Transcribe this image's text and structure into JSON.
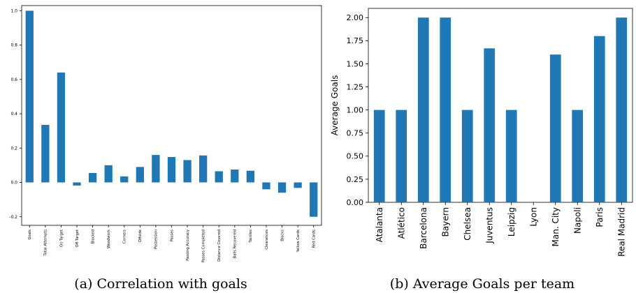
{
  "chart_data": [
    {
      "type": "bar",
      "color": "#1f77b4",
      "categories": [
        "Goals",
        "Total Attempts",
        "On Target",
        "Off Target",
        "Blocked",
        "Woodwork",
        "Corners",
        "Offside",
        "Possession",
        "Passes",
        "Passing Accuracy",
        "Passes Completed",
        "Distance Covered",
        "Balls Recovered",
        "Tackles",
        "Clearances",
        "Blocks",
        "Yellow Cards",
        "Red Cards"
      ],
      "values": [
        1.0,
        0.335,
        0.64,
        -0.018,
        0.055,
        0.1,
        0.035,
        0.09,
        0.16,
        0.148,
        0.13,
        0.157,
        0.065,
        0.075,
        0.068,
        -0.04,
        -0.06,
        -0.032,
        -0.2
      ],
      "ylim": [
        -0.25,
        1.03
      ],
      "yticks": [
        -0.2,
        0.0,
        0.2,
        0.4,
        0.6,
        0.8,
        1.0
      ],
      "ytick_labels": [
        "-0.2",
        "0.0",
        "0.2",
        "0.4",
        "0.6",
        "0.8",
        "1.0"
      ],
      "title": "",
      "xlabel": "",
      "ylabel": "",
      "grid": false,
      "caption": "(a) Correlation with goals"
    },
    {
      "type": "bar",
      "color": "#1f77b4",
      "categories": [
        "Atalanta",
        "Atlético",
        "Barcelona",
        "Bayern",
        "Chelsea",
        "Juventus",
        "Leipzig",
        "Lyon",
        "Man. City",
        "Napoli",
        "Paris",
        "Real Madrid"
      ],
      "values": [
        1.0,
        1.0,
        2.0,
        2.0,
        1.0,
        1.667,
        1.0,
        0.0,
        1.6,
        1.0,
        1.8,
        2.0
      ],
      "ylim": [
        0,
        2.1
      ],
      "yticks": [
        0,
        0.25,
        0.5,
        0.75,
        1.0,
        1.25,
        1.5,
        1.75,
        2.0
      ],
      "ytick_labels": [
        "0.00",
        "0.25",
        "0.50",
        "0.75",
        "1.00",
        "1.25",
        "1.50",
        "1.75",
        "2.00"
      ],
      "title": "",
      "xlabel": "",
      "ylabel": "Average Goals",
      "grid": false,
      "caption": "(b) Average Goals per team"
    }
  ]
}
